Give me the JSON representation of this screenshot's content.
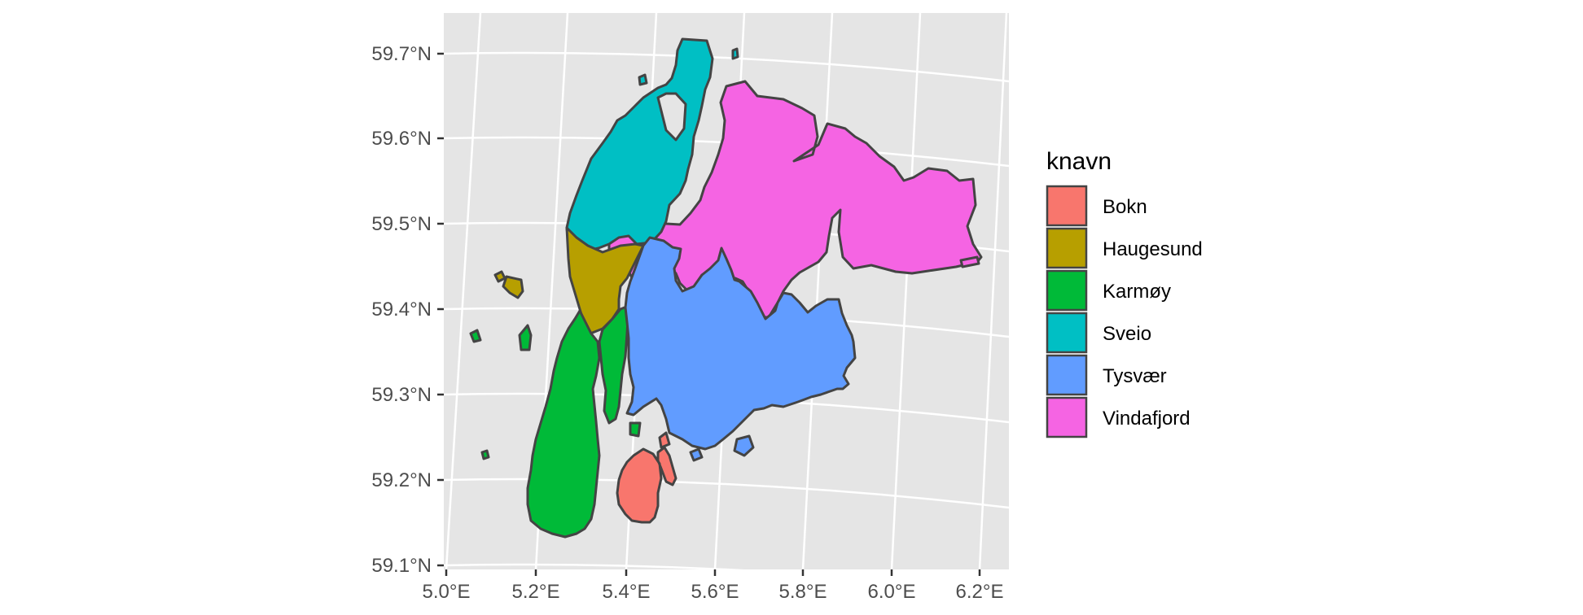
{
  "map": {
    "legend": {
      "title": "knavn",
      "entries": [
        {
          "label": "Bokn",
          "color": "#F8766D"
        },
        {
          "label": "Haugesund",
          "color": "#B79F00"
        },
        {
          "label": "Karmøy",
          "color": "#00BA38"
        },
        {
          "label": "Sveio",
          "color": "#00BFC4"
        },
        {
          "label": "Tysvær",
          "color": "#619CFF"
        },
        {
          "label": "Vindafjord",
          "color": "#F564E3"
        }
      ]
    },
    "y_ticks": [
      "59.7°N",
      "59.6°N",
      "59.5°N",
      "59.4°N",
      "59.3°N",
      "59.2°N",
      "59.1°N"
    ],
    "x_ticks": [
      "5.0°E",
      "5.2°E",
      "5.4°E",
      "5.6°E",
      "5.8°E",
      "6.0°E",
      "6.2°E"
    ],
    "panel_background": "#E5E5E5",
    "grid_color": "#FFFFFF",
    "border_color": "#444444"
  }
}
